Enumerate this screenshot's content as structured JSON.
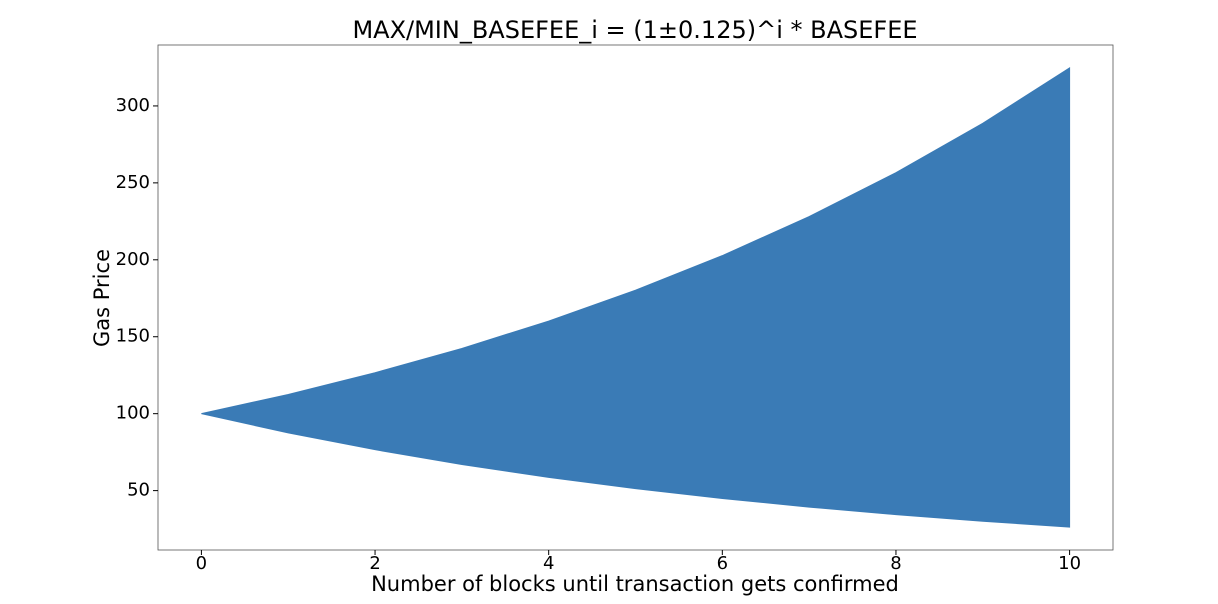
{
  "chart_data": {
    "type": "area",
    "title": "MAX/MIN_BASEFEE_i = (1±0.125)^i * BASEFEE",
    "x_label": "Number of blocks until transaction gets confirmed",
    "y_label": "Gas Price",
    "x": [
      0,
      1,
      2,
      3,
      4,
      5,
      6,
      7,
      8,
      9,
      10
    ],
    "series": [
      {
        "values": [
          100,
          87.5,
          76.6,
          67.0,
          58.6,
          51.3,
          44.9,
          39.3,
          34.4,
          30.1,
          26.3
        ]
      },
      {
        "values": [
          100,
          112.5,
          126.6,
          142.4,
          160.2,
          180.2,
          202.7,
          228.1,
          256.6,
          288.7,
          324.7
        ]
      }
    ],
    "color": "#3a7bb6",
    "xlim": [
      -0.5,
      10.5
    ],
    "xticks": [
      0,
      2,
      4,
      6,
      8,
      10
    ],
    "ylim": [
      11.4,
      339.6
    ],
    "yticks": [
      50,
      100,
      150,
      200,
      250,
      300
    ]
  }
}
